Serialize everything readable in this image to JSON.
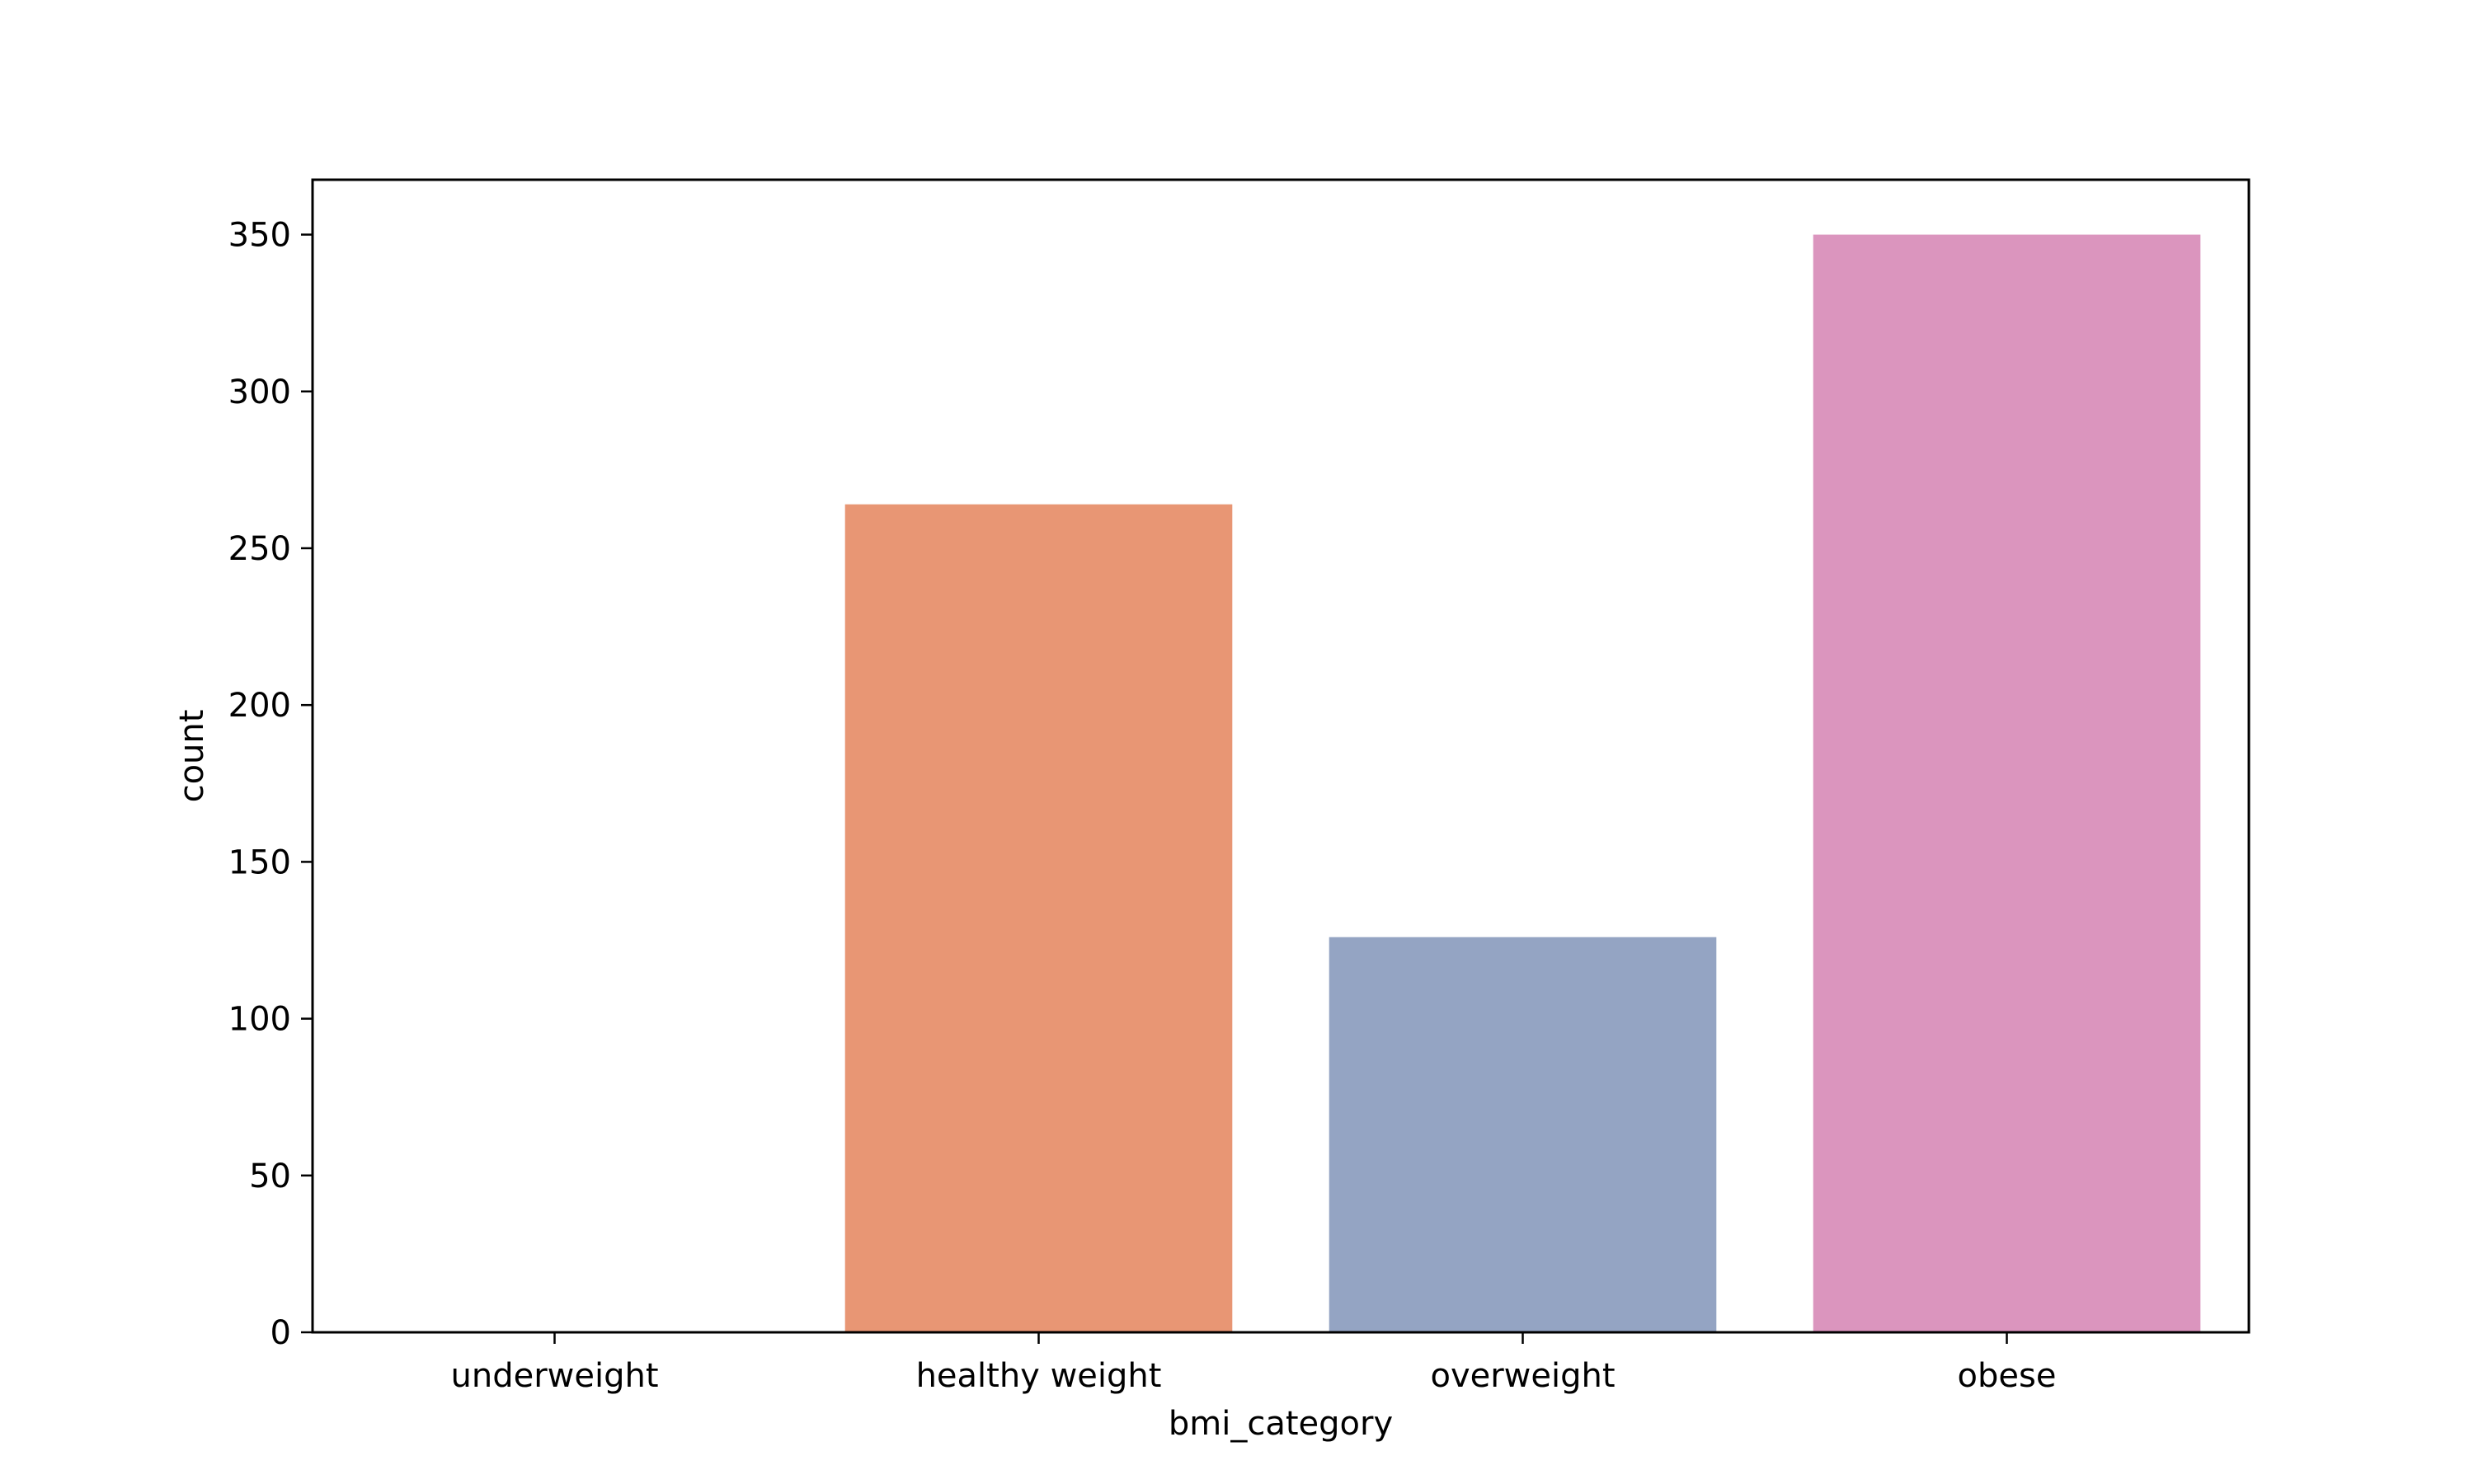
{
  "chart_data": {
    "type": "bar",
    "title": "",
    "xlabel": "bmi_category",
    "ylabel": "count",
    "categories": [
      "underweight",
      "healthy weight",
      "overweight",
      "obese"
    ],
    "values": [
      0,
      264,
      126,
      350
    ],
    "colors": [
      "#66c2a5",
      "#e89674",
      "#94a4c3",
      "#db95be"
    ],
    "ylim": [
      0,
      367.5
    ],
    "yticks": [
      0,
      50,
      100,
      150,
      200,
      250,
      300,
      350
    ],
    "grid": false,
    "legend": "none"
  }
}
